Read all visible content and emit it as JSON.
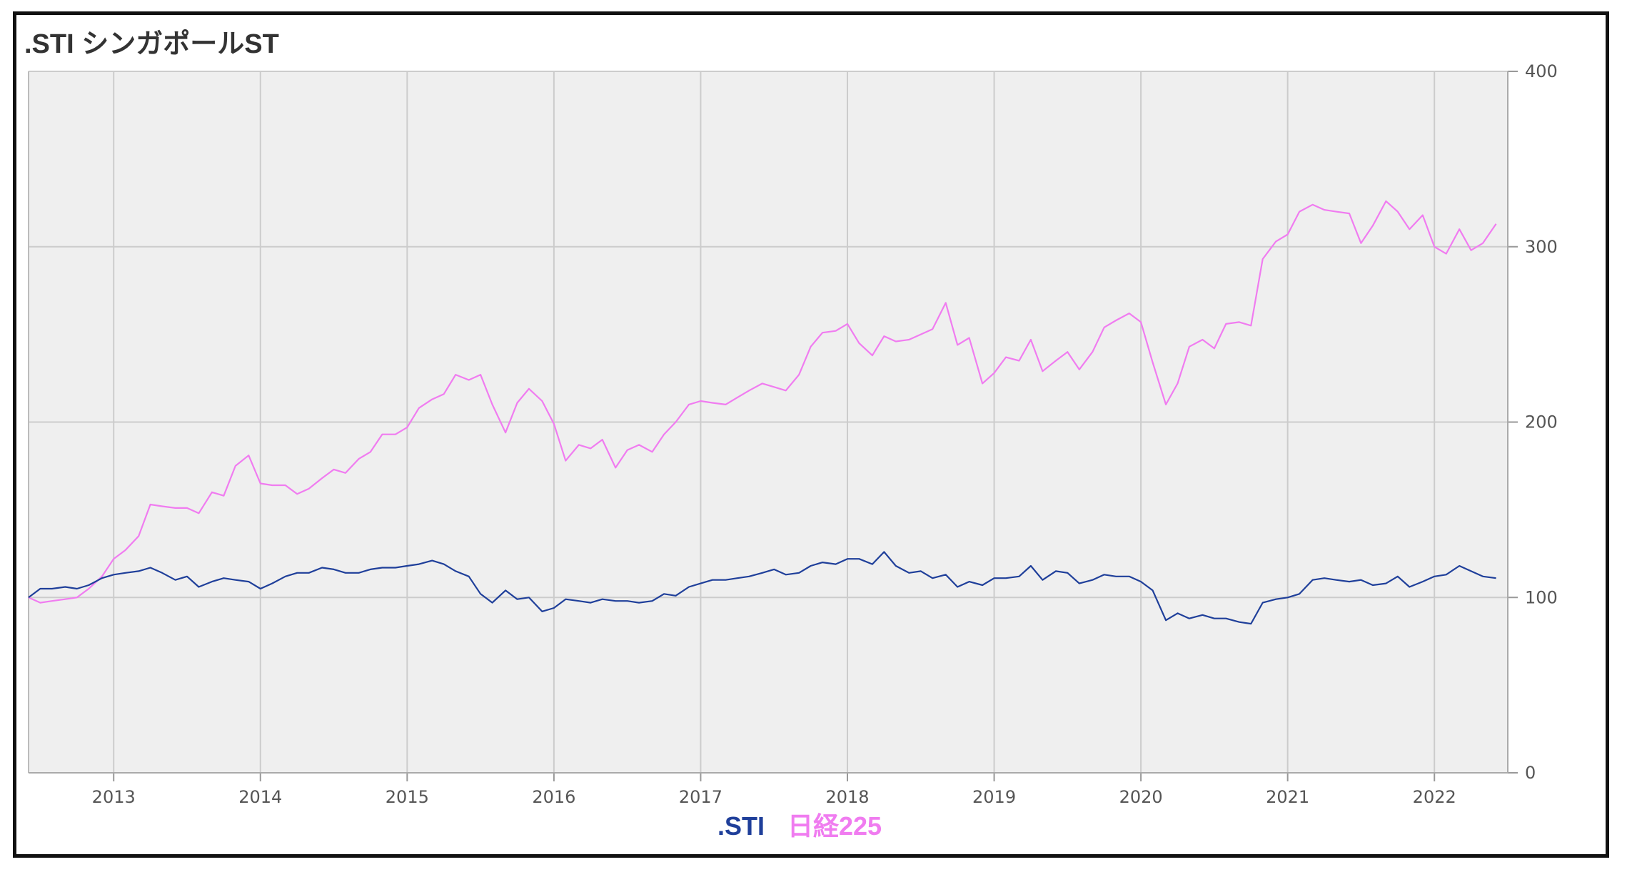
{
  "chart_data": {
    "type": "line",
    "title": ".STI シンガポールST",
    "xlabel": "",
    "ylabel": "",
    "x_range": [
      2012.42,
      2022.5
    ],
    "ylim": [
      0,
      400
    ],
    "y_ticks": [
      0,
      100,
      200,
      300,
      400
    ],
    "x_ticks": [
      2013,
      2014,
      2015,
      2016,
      2017,
      2018,
      2019,
      2020,
      2021,
      2022
    ],
    "x_tick_labels": [
      "2013",
      "2014",
      "2015",
      "2016",
      "2017",
      "2018",
      "2019",
      "2020",
      "2021",
      "2022"
    ],
    "grid": true,
    "legend_position": "bottom-center",
    "background": "#efefef",
    "series": [
      {
        "name": ".STI",
        "color": "#1f3f9a",
        "x": [
          2012.42,
          2012.5,
          2012.58,
          2012.67,
          2012.75,
          2012.83,
          2012.92,
          2013.0,
          2013.08,
          2013.17,
          2013.25,
          2013.33,
          2013.42,
          2013.5,
          2013.58,
          2013.67,
          2013.75,
          2013.83,
          2013.92,
          2014.0,
          2014.08,
          2014.17,
          2014.25,
          2014.33,
          2014.42,
          2014.5,
          2014.58,
          2014.67,
          2014.75,
          2014.83,
          2014.92,
          2015.0,
          2015.08,
          2015.17,
          2015.25,
          2015.33,
          2015.42,
          2015.5,
          2015.58,
          2015.67,
          2015.75,
          2015.83,
          2015.92,
          2016.0,
          2016.08,
          2016.17,
          2016.25,
          2016.33,
          2016.42,
          2016.5,
          2016.58,
          2016.67,
          2016.75,
          2016.83,
          2016.92,
          2017.0,
          2017.08,
          2017.17,
          2017.25,
          2017.33,
          2017.42,
          2017.5,
          2017.58,
          2017.67,
          2017.75,
          2017.83,
          2017.92,
          2018.0,
          2018.08,
          2018.17,
          2018.25,
          2018.33,
          2018.42,
          2018.5,
          2018.58,
          2018.67,
          2018.75,
          2018.83,
          2018.92,
          2019.0,
          2019.08,
          2019.17,
          2019.25,
          2019.33,
          2019.42,
          2019.5,
          2019.58,
          2019.67,
          2019.75,
          2019.83,
          2019.92,
          2020.0,
          2020.08,
          2020.17,
          2020.25,
          2020.33,
          2020.42,
          2020.5,
          2020.58,
          2020.67,
          2020.75,
          2020.83,
          2020.92,
          2021.0,
          2021.08,
          2021.17,
          2021.25,
          2021.33,
          2021.42,
          2021.5,
          2021.58,
          2021.67,
          2021.75,
          2021.83,
          2021.92,
          2022.0,
          2022.08,
          2022.17,
          2022.25,
          2022.33,
          2022.42
        ],
        "values": [
          100,
          105,
          105,
          106,
          105,
          107,
          111,
          113,
          114,
          115,
          117,
          114,
          110,
          112,
          106,
          109,
          111,
          110,
          109,
          105,
          108,
          112,
          114,
          114,
          117,
          116,
          114,
          114,
          116,
          117,
          117,
          118,
          119,
          121,
          119,
          115,
          112,
          102,
          97,
          104,
          99,
          100,
          92,
          94,
          99,
          98,
          97,
          99,
          98,
          98,
          97,
          98,
          102,
          101,
          106,
          108,
          110,
          110,
          111,
          112,
          114,
          116,
          113,
          114,
          118,
          120,
          119,
          122,
          122,
          119,
          126,
          118,
          114,
          115,
          111,
          113,
          106,
          109,
          107,
          111,
          111,
          112,
          118,
          110,
          115,
          114,
          108,
          110,
          113,
          112,
          112,
          109,
          104,
          87,
          91,
          88,
          90,
          88,
          88,
          86,
          85,
          97,
          99,
          100,
          102,
          110,
          111,
          110,
          109,
          110,
          107,
          108,
          112,
          106,
          109,
          112,
          113,
          118,
          115,
          112,
          111
        ]
      },
      {
        "name": "日経225",
        "color": "#f07cf0",
        "x": [
          2012.42,
          2012.5,
          2012.58,
          2012.67,
          2012.75,
          2012.83,
          2012.92,
          2013.0,
          2013.08,
          2013.17,
          2013.25,
          2013.33,
          2013.42,
          2013.5,
          2013.58,
          2013.67,
          2013.75,
          2013.83,
          2013.92,
          2014.0,
          2014.08,
          2014.17,
          2014.25,
          2014.33,
          2014.42,
          2014.5,
          2014.58,
          2014.67,
          2014.75,
          2014.83,
          2014.92,
          2015.0,
          2015.08,
          2015.17,
          2015.25,
          2015.33,
          2015.42,
          2015.5,
          2015.58,
          2015.67,
          2015.75,
          2015.83,
          2015.92,
          2016.0,
          2016.08,
          2016.17,
          2016.25,
          2016.33,
          2016.42,
          2016.5,
          2016.58,
          2016.67,
          2016.75,
          2016.83,
          2016.92,
          2017.0,
          2017.08,
          2017.17,
          2017.25,
          2017.33,
          2017.42,
          2017.5,
          2017.58,
          2017.67,
          2017.75,
          2017.83,
          2017.92,
          2018.0,
          2018.08,
          2018.17,
          2018.25,
          2018.33,
          2018.42,
          2018.5,
          2018.58,
          2018.67,
          2018.75,
          2018.83,
          2018.92,
          2019.0,
          2019.08,
          2019.17,
          2019.25,
          2019.33,
          2019.42,
          2019.5,
          2019.58,
          2019.67,
          2019.75,
          2019.83,
          2019.92,
          2020.0,
          2020.08,
          2020.17,
          2020.25,
          2020.33,
          2020.42,
          2020.5,
          2020.58,
          2020.67,
          2020.75,
          2020.83,
          2020.92,
          2021.0,
          2021.08,
          2021.17,
          2021.25,
          2021.33,
          2021.42,
          2021.5,
          2021.58,
          2021.67,
          2021.75,
          2021.83,
          2021.92,
          2022.0,
          2022.08,
          2022.17,
          2022.25,
          2022.33,
          2022.42
        ],
        "values": [
          100,
          97,
          98,
          99,
          100,
          105,
          112,
          122,
          127,
          135,
          153,
          152,
          151,
          151,
          148,
          160,
          158,
          175,
          181,
          165,
          164,
          164,
          159,
          162,
          168,
          173,
          171,
          179,
          183,
          193,
          193,
          197,
          208,
          213,
          216,
          227,
          224,
          227,
          210,
          194,
          211,
          219,
          212,
          199,
          178,
          187,
          185,
          190,
          174,
          184,
          187,
          183,
          193,
          200,
          210,
          212,
          211,
          210,
          214,
          218,
          222,
          220,
          218,
          227,
          243,
          251,
          252,
          256,
          245,
          238,
          249,
          246,
          247,
          250,
          253,
          268,
          244,
          248,
          222,
          228,
          237,
          235,
          247,
          229,
          235,
          240,
          230,
          240,
          254,
          258,
          262,
          257,
          234,
          210,
          222,
          243,
          247,
          242,
          256,
          257,
          255,
          293,
          303,
          307,
          320,
          324,
          321,
          320,
          319,
          302,
          312,
          326,
          320,
          310,
          318,
          300,
          296,
          310,
          298,
          302,
          313
        ]
      }
    ]
  }
}
